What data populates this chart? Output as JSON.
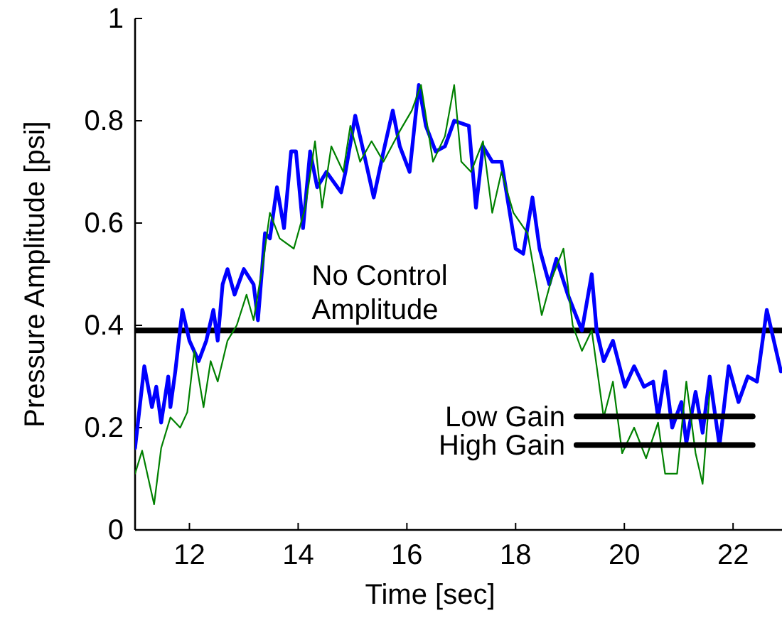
{
  "chart_data": {
    "type": "line",
    "xlabel": "Time [sec]",
    "ylabel": "Pressure Amplitude [psi]",
    "xlim": [
      11,
      22.9
    ],
    "ylim": [
      0,
      1
    ],
    "xticks": [
      12,
      14,
      16,
      18,
      20,
      22
    ],
    "yticks": [
      0,
      0.2,
      0.4,
      0.6,
      0.8,
      1
    ],
    "grid": false,
    "legend": false,
    "ref_lines": [
      {
        "axis": "y",
        "value": 0.39,
        "label": "No Control Amplitude",
        "color": "#000000"
      }
    ],
    "series": [
      {
        "color": "#0000ff",
        "x": [
          11.0,
          11.17,
          11.31,
          11.39,
          11.48,
          11.61,
          11.65,
          11.74,
          11.87,
          12.0,
          12.17,
          12.31,
          12.44,
          12.52,
          12.61,
          12.7,
          12.83,
          13.0,
          13.18,
          13.26,
          13.39,
          13.48,
          13.61,
          13.74,
          13.87,
          13.96,
          14.09,
          14.22,
          14.35,
          14.52,
          14.79,
          14.87,
          15.05,
          15.18,
          15.39,
          15.57,
          15.74,
          15.87,
          16.05,
          16.22,
          16.35,
          16.53,
          16.7,
          16.87,
          17.14,
          17.27,
          17.4,
          17.57,
          17.74,
          18.0,
          18.14,
          18.31,
          18.44,
          18.62,
          18.75,
          18.96,
          19.22,
          19.4,
          19.49,
          19.62,
          19.79,
          20.01,
          20.18,
          20.36,
          20.53,
          20.62,
          20.75,
          20.88,
          21.05,
          21.14,
          21.31,
          21.44,
          21.57,
          21.75,
          21.92,
          22.1,
          22.27,
          22.44,
          22.62,
          22.75,
          22.88
        ],
        "values": [
          0.16,
          0.32,
          0.24,
          0.28,
          0.21,
          0.3,
          0.24,
          0.31,
          0.43,
          0.37,
          0.33,
          0.37,
          0.43,
          0.37,
          0.48,
          0.51,
          0.46,
          0.51,
          0.48,
          0.41,
          0.58,
          0.57,
          0.67,
          0.59,
          0.74,
          0.74,
          0.59,
          0.74,
          0.67,
          0.7,
          0.66,
          0.7,
          0.81,
          0.75,
          0.65,
          0.74,
          0.82,
          0.75,
          0.7,
          0.87,
          0.79,
          0.74,
          0.75,
          0.8,
          0.79,
          0.63,
          0.75,
          0.72,
          0.72,
          0.55,
          0.54,
          0.65,
          0.55,
          0.48,
          0.53,
          0.46,
          0.39,
          0.5,
          0.39,
          0.33,
          0.37,
          0.28,
          0.32,
          0.28,
          0.29,
          0.22,
          0.31,
          0.2,
          0.25,
          0.17,
          0.27,
          0.19,
          0.3,
          0.165,
          0.32,
          0.25,
          0.3,
          0.29,
          0.43,
          0.37,
          0.31
        ]
      },
      {
        "color": "#008000",
        "x": [
          11.0,
          11.13,
          11.35,
          11.48,
          11.65,
          11.83,
          11.96,
          12.09,
          12.26,
          12.39,
          12.52,
          12.7,
          12.87,
          13.05,
          13.18,
          13.35,
          13.48,
          13.66,
          13.92,
          14.13,
          14.31,
          14.44,
          14.61,
          14.83,
          14.96,
          15.14,
          15.35,
          15.57,
          15.87,
          16.09,
          16.26,
          16.48,
          16.7,
          16.87,
          17.0,
          17.18,
          17.4,
          17.57,
          17.74,
          17.96,
          18.22,
          18.48,
          18.66,
          18.88,
          19.05,
          19.22,
          19.4,
          19.62,
          19.79,
          19.96,
          20.18,
          20.4,
          20.62,
          20.75,
          20.97,
          21.14,
          21.31,
          21.44,
          21.57
        ],
        "values": [
          0.11,
          0.155,
          0.05,
          0.16,
          0.22,
          0.2,
          0.23,
          0.35,
          0.24,
          0.33,
          0.29,
          0.37,
          0.4,
          0.46,
          0.41,
          0.52,
          0.62,
          0.57,
          0.55,
          0.63,
          0.76,
          0.63,
          0.75,
          0.7,
          0.79,
          0.72,
          0.76,
          0.72,
          0.78,
          0.82,
          0.87,
          0.72,
          0.77,
          0.87,
          0.72,
          0.7,
          0.76,
          0.62,
          0.7,
          0.62,
          0.58,
          0.42,
          0.49,
          0.55,
          0.4,
          0.35,
          0.39,
          0.22,
          0.29,
          0.15,
          0.2,
          0.14,
          0.21,
          0.11,
          0.11,
          0.29,
          0.15,
          0.09,
          0.27
        ]
      },
      {
        "name": "Low Gain",
        "color": "#000000",
        "x": [
          19.12,
          22.36
        ],
        "values": [
          0.222,
          0.222
        ]
      },
      {
        "name": "High Gain",
        "color": "#000000",
        "x": [
          19.12,
          22.36
        ],
        "values": [
          0.166,
          0.166
        ]
      }
    ]
  }
}
